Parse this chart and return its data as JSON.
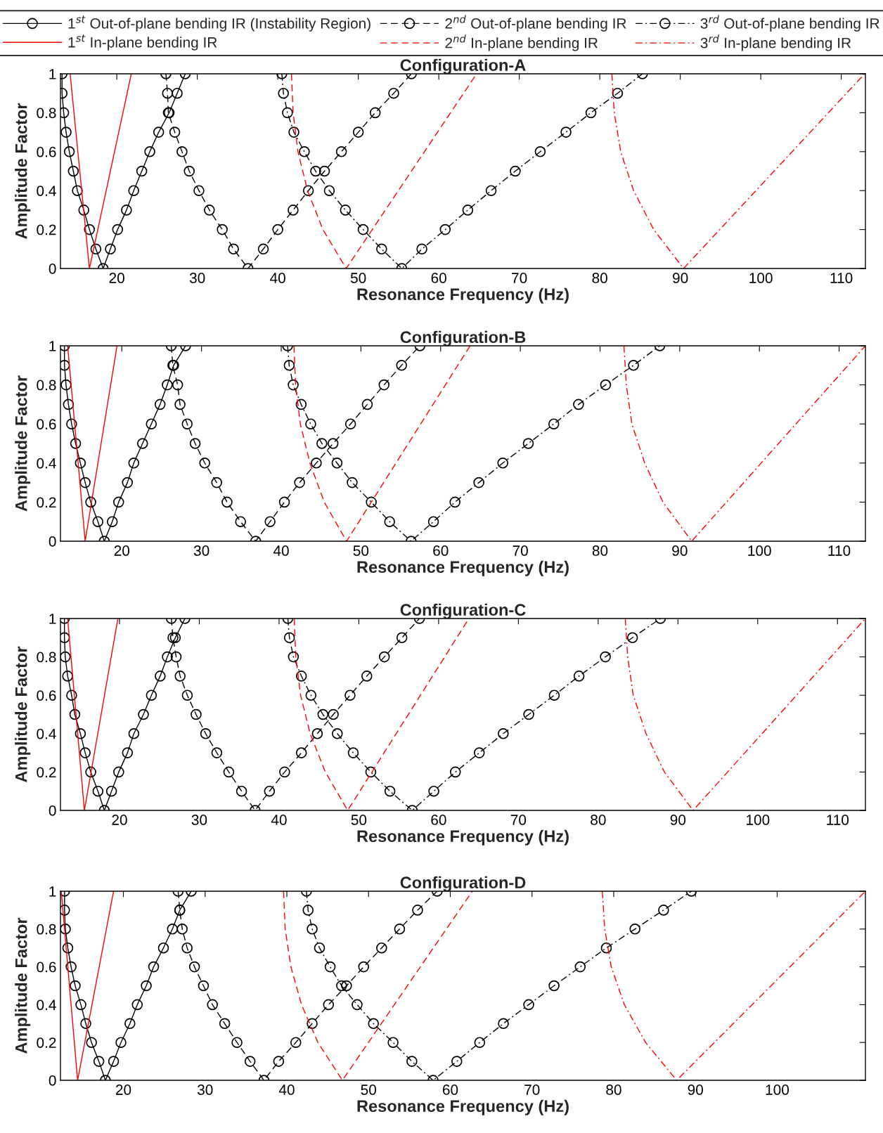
{
  "chart_data": [
    {
      "type": "line",
      "title": "Configuration-A",
      "xlabel": "Resonance Frequency (Hz)",
      "ylabel": "Amplitude Factor",
      "legend": "top",
      "xlim": [
        13,
        113
      ],
      "xticks": [
        20,
        30,
        40,
        50,
        60,
        70,
        80,
        90,
        100,
        110
      ],
      "ylim": [
        0,
        1
      ],
      "yticks": [
        0,
        0.2,
        0.4,
        0.6,
        0.8,
        1
      ],
      "series": [
        {
          "name": "1$^{st}$ Out-of-plane bending IR (Instability Region)",
          "color": "#000000",
          "line_style": "solid",
          "marker": "circle",
          "x": [
            13.2,
            13.2,
            13.4,
            13.7,
            14.1,
            14.6,
            15.1,
            15.9,
            16.6,
            17.4,
            18.3,
            19.2,
            20.1,
            21.2,
            22.1,
            23.1,
            24.1,
            25.2,
            26.5,
            27.5,
            28.5
          ],
          "values": [
            1,
            0.9,
            0.8,
            0.7,
            0.6,
            0.5,
            0.4,
            0.3,
            0.2,
            0.1,
            0,
            0.1,
            0.2,
            0.3,
            0.4,
            0.5,
            0.6,
            0.7,
            0.8,
            0.9,
            1
          ]
        },
        {
          "name": "2$^{nd}$ Out-of-plane bending IR",
          "color": "#000000",
          "line_style": "dashed",
          "marker": "circle",
          "x": [
            26.1,
            26.3,
            26.4,
            27.2,
            28.1,
            29.0,
            30.2,
            31.5,
            33.1,
            34.5,
            36.3,
            38.2,
            40.0,
            41.9,
            43.8,
            45.8,
            47.9,
            50.0,
            52.1,
            54.4,
            56.6
          ],
          "values": [
            1,
            0.9,
            0.8,
            0.7,
            0.6,
            0.5,
            0.4,
            0.3,
            0.2,
            0.1,
            0,
            0.1,
            0.2,
            0.3,
            0.4,
            0.5,
            0.6,
            0.7,
            0.8,
            0.9,
            1
          ]
        },
        {
          "name": "3$^{rd}$ Out-of-plane bending IR",
          "color": "#000000",
          "line_style": "dashdot",
          "marker": "circle",
          "x": [
            40.5,
            40.7,
            41.2,
            42.0,
            43.3,
            44.7,
            46.4,
            48.4,
            50.6,
            52.9,
            55.4,
            57.9,
            60.8,
            63.6,
            66.5,
            69.5,
            72.6,
            75.8,
            78.9,
            82.2,
            85.3
          ],
          "values": [
            1,
            0.9,
            0.8,
            0.7,
            0.6,
            0.5,
            0.4,
            0.3,
            0.2,
            0.1,
            0,
            0.1,
            0.2,
            0.3,
            0.4,
            0.5,
            0.6,
            0.7,
            0.8,
            0.9,
            1
          ]
        },
        {
          "name": "1$^{st}$ In-plane bending IR",
          "color": "#ff0000",
          "line_style": "solid",
          "marker": "none",
          "x": [
            14.2,
            16.6,
            21.8
          ],
          "values": [
            1,
            0,
            1
          ]
        },
        {
          "name": "2$^{nd}$ In-plane bending IR",
          "color": "#ff0000",
          "line_style": "dashed",
          "marker": "none",
          "x": [
            41.7,
            41.9,
            42.5,
            43.7,
            45.6,
            48.5,
            64.7
          ],
          "values": [
            1,
            0.8,
            0.6,
            0.4,
            0.2,
            0,
            1
          ]
        },
        {
          "name": "3$^{rd}$ In-plane bending IR",
          "color": "#ff0000",
          "line_style": "dashdot",
          "marker": "none",
          "x": [
            81.5,
            81.8,
            82.6,
            84.2,
            86.7,
            90.4,
            112.9
          ],
          "values": [
            1,
            0.8,
            0.6,
            0.4,
            0.2,
            0,
            1
          ]
        }
      ]
    },
    {
      "type": "line",
      "title": "Configuration-B",
      "xlabel": "Resonance Frequency (Hz)",
      "ylabel": "Amplitude Factor",
      "xlim": [
        12.3,
        113.3
      ],
      "xticks": [
        20,
        30,
        40,
        50,
        60,
        70,
        80,
        90,
        100,
        110
      ],
      "ylim": [
        0,
        1
      ],
      "yticks": [
        0,
        0.2,
        0.4,
        0.6,
        0.8,
        1
      ],
      "series": [
        {
          "color": "#000000",
          "line_style": "solid",
          "marker": "circle",
          "x": [
            12.8,
            12.8,
            13.0,
            13.3,
            13.7,
            14.2,
            14.8,
            15.4,
            16.1,
            17.0,
            17.8,
            18.8,
            19.6,
            20.7,
            21.5,
            22.6,
            23.7,
            24.8,
            25.7,
            26.5,
            28.0
          ],
          "values": [
            1,
            0.9,
            0.8,
            0.7,
            0.6,
            0.5,
            0.4,
            0.3,
            0.2,
            0.1,
            0,
            0.1,
            0.2,
            0.3,
            0.4,
            0.5,
            0.6,
            0.7,
            0.8,
            0.9,
            1
          ]
        },
        {
          "color": "#000000",
          "line_style": "dashed",
          "marker": "circle",
          "x": [
            26.2,
            26.4,
            27.0,
            27.3,
            28.2,
            29.2,
            30.4,
            31.9,
            33.2,
            34.9,
            36.8,
            38.6,
            40.4,
            42.3,
            44.4,
            46.5,
            48.7,
            50.8,
            52.9,
            55.1,
            57.4
          ],
          "values": [
            1,
            0.9,
            0.8,
            0.7,
            0.6,
            0.5,
            0.4,
            0.3,
            0.2,
            0.1,
            0,
            0.1,
            0.2,
            0.3,
            0.4,
            0.5,
            0.6,
            0.7,
            0.8,
            0.9,
            1
          ]
        },
        {
          "color": "#000000",
          "line_style": "dashdot",
          "marker": "circle",
          "x": [
            40.8,
            41.0,
            41.5,
            42.5,
            43.7,
            45.1,
            47.0,
            48.9,
            51.3,
            53.6,
            56.3,
            59.1,
            61.8,
            64.8,
            67.8,
            71.0,
            74.2,
            77.3,
            80.7,
            84.2,
            87.5
          ],
          "values": [
            1,
            0.9,
            0.8,
            0.7,
            0.6,
            0.5,
            0.4,
            0.3,
            0.2,
            0.1,
            0,
            0.1,
            0.2,
            0.3,
            0.4,
            0.5,
            0.6,
            0.7,
            0.8,
            0.9,
            1
          ]
        },
        {
          "color": "#ff0000",
          "line_style": "solid",
          "marker": "none",
          "x": [
            13.2,
            15.4,
            19.4
          ],
          "values": [
            1,
            0,
            1
          ]
        },
        {
          "color": "#ff0000",
          "line_style": "dashed",
          "marker": "none",
          "x": [
            41.6,
            41.8,
            42.4,
            43.6,
            45.4,
            48.2,
            63.7
          ],
          "values": [
            1,
            0.8,
            0.6,
            0.4,
            0.2,
            0,
            1
          ]
        },
        {
          "color": "#ff0000",
          "line_style": "dashdot",
          "marker": "none",
          "x": [
            83.0,
            83.3,
            84.0,
            85.6,
            87.9,
            91.5,
            113.3
          ],
          "values": [
            1,
            0.8,
            0.6,
            0.4,
            0.2,
            0,
            1
          ]
        }
      ]
    },
    {
      "type": "line",
      "title": "Configuration-C",
      "xlabel": "Resonance Frequency (Hz)",
      "ylabel": "Amplitude Factor",
      "xlim": [
        12.6,
        113.5
      ],
      "xticks": [
        20,
        30,
        40,
        50,
        60,
        70,
        80,
        90,
        100,
        110
      ],
      "ylim": [
        0,
        1
      ],
      "yticks": [
        0,
        0.2,
        0.4,
        0.6,
        0.8,
        1
      ],
      "series": [
        {
          "color": "#000000",
          "line_style": "solid",
          "marker": "circle",
          "x": [
            13.1,
            13.1,
            13.2,
            13.5,
            14.0,
            14.4,
            15.1,
            15.7,
            16.4,
            17.3,
            18.1,
            19.0,
            19.9,
            21.0,
            21.8,
            23.0,
            24.0,
            25.1,
            26.0,
            27.0,
            28.2
          ],
          "values": [
            1,
            0.9,
            0.8,
            0.7,
            0.6,
            0.5,
            0.4,
            0.3,
            0.2,
            0.1,
            0,
            0.1,
            0.2,
            0.3,
            0.4,
            0.5,
            0.6,
            0.7,
            0.8,
            0.9,
            1
          ]
        },
        {
          "color": "#000000",
          "line_style": "dashed",
          "marker": "circle",
          "x": [
            26.5,
            26.7,
            27.1,
            27.6,
            28.5,
            29.6,
            30.8,
            32.2,
            33.7,
            35.3,
            37.0,
            38.8,
            40.7,
            42.8,
            44.8,
            46.8,
            48.9,
            51.0,
            53.2,
            55.4,
            57.6
          ],
          "values": [
            1,
            0.9,
            0.8,
            0.7,
            0.6,
            0.5,
            0.4,
            0.3,
            0.2,
            0.1,
            0,
            0.1,
            0.2,
            0.3,
            0.4,
            0.5,
            0.6,
            0.7,
            0.8,
            0.9,
            1
          ]
        },
        {
          "color": "#000000",
          "line_style": "dashdot",
          "marker": "circle",
          "x": [
            41.1,
            41.3,
            41.8,
            42.8,
            44.0,
            45.5,
            47.3,
            49.3,
            51.5,
            53.9,
            56.7,
            59.4,
            62.1,
            65.1,
            68.1,
            71.3,
            74.5,
            77.6,
            80.9,
            84.3,
            87.8
          ],
          "values": [
            1,
            0.9,
            0.8,
            0.7,
            0.6,
            0.5,
            0.4,
            0.3,
            0.2,
            0.1,
            0,
            0.1,
            0.2,
            0.3,
            0.4,
            0.5,
            0.6,
            0.7,
            0.8,
            0.9,
            1
          ]
        },
        {
          "color": "#ff0000",
          "line_style": "solid",
          "marker": "none",
          "x": [
            13.5,
            15.6,
            19.8
          ],
          "values": [
            1,
            0,
            1
          ]
        },
        {
          "color": "#ff0000",
          "line_style": "dashed",
          "marker": "none",
          "x": [
            41.9,
            42.1,
            42.7,
            43.9,
            45.8,
            48.6,
            63.8
          ],
          "values": [
            1,
            0.8,
            0.6,
            0.4,
            0.2,
            0,
            1
          ]
        },
        {
          "color": "#ff0000",
          "line_style": "dashdot",
          "marker": "none",
          "x": [
            83.4,
            83.7,
            84.4,
            86.0,
            88.3,
            91.9,
            113.5
          ],
          "values": [
            1,
            0.8,
            0.6,
            0.4,
            0.2,
            0,
            1
          ]
        }
      ]
    },
    {
      "type": "line",
      "title": "Configuration-D",
      "xlabel": "Resonance Frequency (Hz)",
      "ylabel": "Amplitude Factor",
      "xlim": [
        12.3,
        110.8
      ],
      "xticks": [
        20,
        30,
        40,
        50,
        60,
        70,
        80,
        90,
        100
      ],
      "ylim": [
        0,
        1
      ],
      "yticks": [
        0,
        0.2,
        0.4,
        0.6,
        0.8,
        1
      ],
      "series": [
        {
          "color": "#000000",
          "line_style": "solid",
          "marker": "circle",
          "x": [
            12.8,
            12.8,
            12.9,
            13.2,
            13.6,
            14.1,
            14.8,
            15.4,
            16.1,
            17.0,
            17.8,
            18.8,
            19.7,
            20.8,
            21.7,
            22.8,
            23.7,
            24.9,
            26.0,
            26.9,
            28.3
          ],
          "values": [
            1,
            0.9,
            0.8,
            0.7,
            0.6,
            0.5,
            0.4,
            0.3,
            0.2,
            0.1,
            0,
            0.1,
            0.2,
            0.3,
            0.4,
            0.5,
            0.6,
            0.7,
            0.8,
            0.9,
            1
          ]
        },
        {
          "color": "#000000",
          "line_style": "dashed",
          "marker": "circle",
          "x": [
            26.7,
            26.9,
            27.2,
            27.8,
            28.7,
            29.8,
            30.9,
            32.4,
            33.9,
            35.5,
            37.2,
            39.0,
            41.1,
            43.1,
            45.1,
            47.3,
            49.4,
            51.6,
            53.8,
            56.0,
            58.4
          ],
          "values": [
            1,
            0.9,
            0.8,
            0.7,
            0.6,
            0.5,
            0.4,
            0.3,
            0.2,
            0.1,
            0,
            0.1,
            0.2,
            0.3,
            0.4,
            0.5,
            0.6,
            0.7,
            0.8,
            0.9,
            1
          ]
        },
        {
          "color": "#000000",
          "line_style": "dashdot",
          "marker": "circle",
          "x": [
            42.4,
            42.6,
            43.1,
            44.0,
            45.3,
            46.7,
            48.6,
            50.6,
            53.0,
            55.3,
            57.9,
            60.8,
            63.6,
            66.5,
            69.6,
            72.7,
            75.9,
            79.1,
            82.6,
            86.1,
            89.5
          ],
          "values": [
            1,
            0.9,
            0.8,
            0.7,
            0.6,
            0.5,
            0.4,
            0.3,
            0.2,
            0.1,
            0,
            0.1,
            0.2,
            0.3,
            0.4,
            0.5,
            0.6,
            0.7,
            0.8,
            0.9,
            1
          ]
        },
        {
          "color": "#ff0000",
          "line_style": "solid",
          "marker": "none",
          "x": [
            12.4,
            14.4,
            18.8
          ],
          "values": [
            1,
            0,
            1
          ]
        },
        {
          "color": "#ff0000",
          "line_style": "dashed",
          "marker": "none",
          "x": [
            39.6,
            39.8,
            40.5,
            41.8,
            43.8,
            46.8,
            62.7
          ],
          "values": [
            1,
            0.8,
            0.6,
            0.4,
            0.2,
            0,
            1
          ]
        },
        {
          "color": "#ff0000",
          "line_style": "dashdot",
          "marker": "none",
          "x": [
            78.6,
            78.9,
            79.7,
            81.3,
            83.9,
            87.7,
            110.8
          ],
          "values": [
            1,
            0.8,
            0.6,
            0.4,
            0.2,
            0,
            1
          ]
        }
      ]
    }
  ]
}
